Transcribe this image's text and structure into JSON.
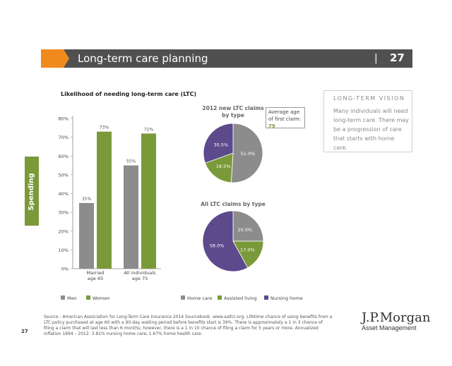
{
  "header": {
    "title": "Long-term care planning",
    "separator": "|",
    "page_number": "27"
  },
  "side_tab": {
    "label": "Spending",
    "color": "#7a9a3a"
  },
  "callout": {
    "title": "LONG-TERM VISION",
    "text": "Many individuals will need long-term care. There may be a progression of care that starts with home care."
  },
  "avg_age": {
    "label": "Average age of first claim:",
    "value": "79"
  },
  "footer": {
    "source": "Source : American Association for Long-Term Care Insurance 2014 Sourcebook. www.aaltci.org. Lifetime chance of using benefits from a LTC policy purchased at age 60 with a 90-day waiting period before benefits start is 39%. There is approximately a 1 in 3 chance of filing a claim that will last less than 6 months; however, there is a 1 in 10 chance of filing a claim for 5 years or more. Annualized inflation 1994 – 2012: 3.81% nursing home care; 1.67% home health care.",
    "page_number": "27"
  },
  "logo": {
    "name": "J.P.Morgan",
    "sub": "Asset Management"
  },
  "colors": {
    "men": "#8c8c8c",
    "women": "#7a9a3a",
    "home_care": "#8c8c8c",
    "assisted_living": "#7a9a3a",
    "nursing_home": "#5c4a8c",
    "header": "#505050",
    "accent_orange": "#f08a1c"
  },
  "chart_data": [
    {
      "type": "bar",
      "title": "Likelihood of needing long-term care (LTC)",
      "categories": [
        "Married age 65",
        "All individuals age 75"
      ],
      "category_lines": [
        [
          "Married",
          "age 65"
        ],
        [
          "All individuals",
          "age 75"
        ]
      ],
      "series": [
        {
          "name": "Men",
          "values": [
            35,
            55
          ],
          "labels": [
            "35%",
            "55%"
          ]
        },
        {
          "name": "Women",
          "values": [
            73,
            72
          ],
          "labels": [
            "73%",
            "72%"
          ]
        }
      ],
      "ylim": [
        0,
        80
      ],
      "yticks": [
        0,
        10,
        20,
        30,
        40,
        50,
        60,
        70,
        80
      ],
      "ytick_labels": [
        "0%",
        "10%",
        "20%",
        "30%",
        "40%",
        "50%",
        "60%",
        "70%",
        "80%"
      ],
      "grid": false,
      "legend_position": "bottom-left"
    },
    {
      "type": "pie",
      "title": "2012 new LTC claims by type",
      "title_lines": [
        "2012 new LTC claims",
        "by type"
      ],
      "slices": [
        {
          "name": "Home care",
          "value": 51.0,
          "label": "51.0%"
        },
        {
          "name": "Assisted living",
          "value": 18.5,
          "label": "18.5%"
        },
        {
          "name": "Nursing home",
          "value": 30.5,
          "label": "30.5%"
        }
      ]
    },
    {
      "type": "pie",
      "title": "All LTC claims by type",
      "title_lines": [
        "All LTC claims by type"
      ],
      "slices": [
        {
          "name": "Home care",
          "value": 25.0,
          "label": "25.0%"
        },
        {
          "name": "Assisted living",
          "value": 17.0,
          "label": "17.0%"
        },
        {
          "name": "Nursing home",
          "value": 58.0,
          "label": "58.0%"
        }
      ],
      "legend_position": "bottom"
    }
  ]
}
